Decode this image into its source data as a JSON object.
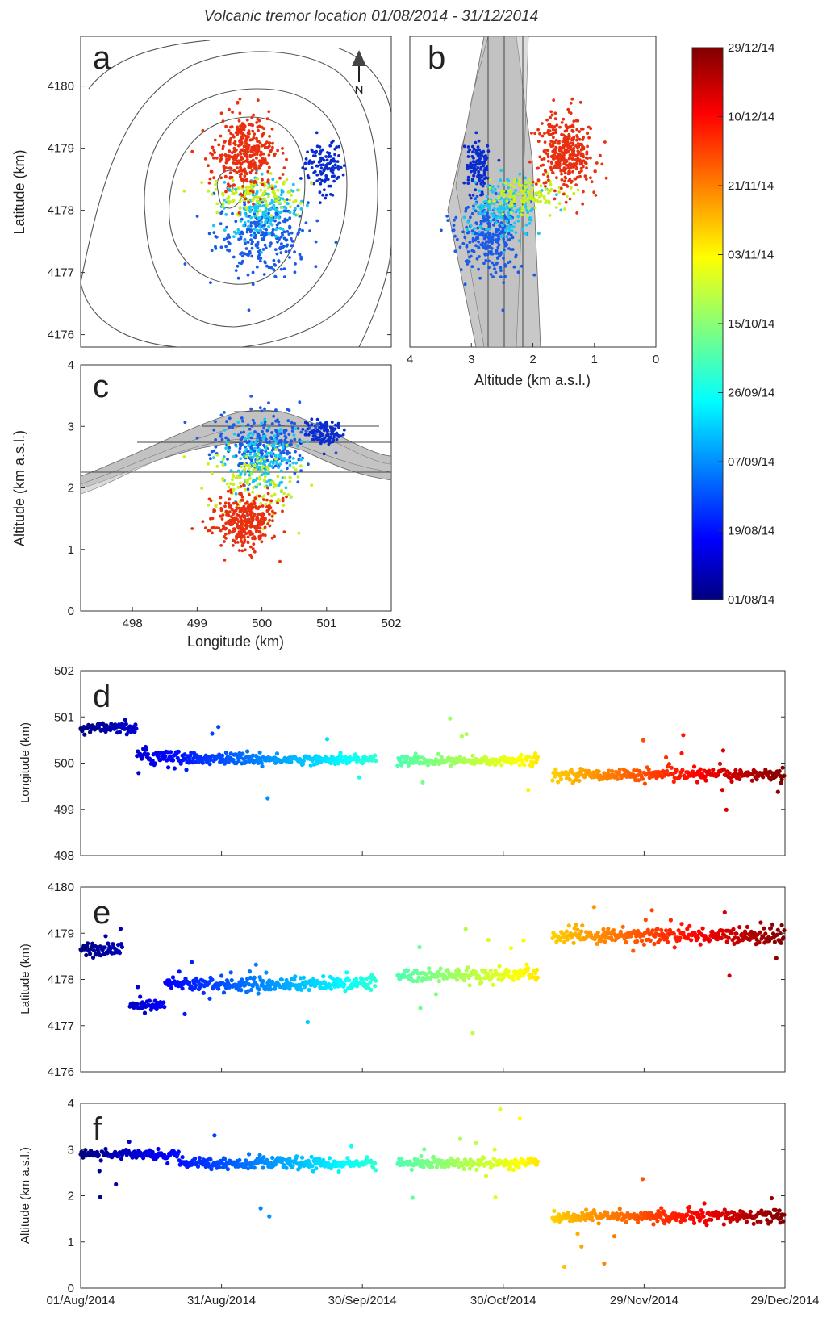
{
  "title": "Volcanic tremor location 01/08/2014 - 31/12/2014",
  "chart_data": [
    {
      "panel": "a",
      "type": "scatter",
      "xlabel": "",
      "ylabel": "Latitude (km)",
      "xlim": [
        497.2,
        502.0
      ],
      "ylim": [
        4175.8,
        4180.8
      ],
      "yticks": [
        "4176",
        "4177",
        "4178",
        "4179",
        "4180"
      ],
      "north_label": "N",
      "clusters": [
        {
          "period": "Aug 2014",
          "color": "#0a2ccf",
          "center": [
            500.95,
            4178.7
          ],
          "spread": [
            0.16,
            0.22
          ],
          "n": 120
        },
        {
          "period": "Aug-Sep 2014",
          "color": "#1a5ae8",
          "center": [
            500.0,
            4177.6
          ],
          "spread": [
            0.35,
            0.3
          ],
          "n": 260
        },
        {
          "period": "Sep-Oct 2014",
          "color": "#19c7f0",
          "center": [
            500.0,
            4178.05
          ],
          "spread": [
            0.3,
            0.25
          ],
          "n": 160
        },
        {
          "period": "Oct-Nov 2014",
          "color": "#c8f01f",
          "center": [
            499.85,
            4178.25
          ],
          "spread": [
            0.35,
            0.15
          ],
          "n": 120
        },
        {
          "period": "Nov-Dec 2014",
          "color": "#e83010",
          "center": [
            499.75,
            4178.9
          ],
          "spread": [
            0.22,
            0.3
          ],
          "n": 360
        }
      ]
    },
    {
      "panel": "b",
      "type": "scatter",
      "xlabel": "Altitude (km a.s.l.)",
      "ylabel": "",
      "xlim": [
        4,
        0
      ],
      "xticks": [
        "4",
        "3",
        "2",
        "1",
        "0"
      ],
      "ylim": [
        4175.8,
        4180.8
      ]
    },
    {
      "panel": "c",
      "type": "scatter",
      "xlabel": "Longitude (km)",
      "ylabel": "Altitude (km a.s.l.)",
      "xlim": [
        497.2,
        502.0
      ],
      "ylim": [
        0,
        4
      ],
      "xticks": [
        "498",
        "499",
        "500",
        "501",
        "502"
      ],
      "yticks": [
        "0",
        "1",
        "2",
        "3",
        "4"
      ]
    },
    {
      "panel": "colorbar",
      "type": "colorbar",
      "labels": [
        "29/12/14",
        "10/12/14",
        "21/11/14",
        "03/11/14",
        "15/10/14",
        "26/09/14",
        "07/09/14",
        "19/08/14",
        "01/08/14"
      ]
    },
    {
      "panel": "d",
      "type": "scatter",
      "ylabel": "Longitude (km)",
      "ylim": [
        498,
        502
      ],
      "yticks": [
        "498",
        "499",
        "500",
        "501",
        "502"
      ],
      "segments": [
        {
          "from": 0,
          "to": 0.08,
          "level": 500.75,
          "noise": 0.12
        },
        {
          "from": 0.08,
          "to": 0.14,
          "level": 500.15,
          "noise": 0.2
        },
        {
          "from": 0.14,
          "to": 0.26,
          "level": 500.1,
          "noise": 0.12
        },
        {
          "from": 0.26,
          "to": 0.42,
          "level": 500.08,
          "noise": 0.1
        },
        {
          "from": 0.45,
          "to": 0.65,
          "level": 500.05,
          "noise": 0.12
        },
        {
          "from": 0.67,
          "to": 1.0,
          "level": 499.75,
          "noise": 0.12
        }
      ]
    },
    {
      "panel": "e",
      "type": "scatter",
      "ylabel": "Latitude (km)",
      "ylim": [
        4176,
        4180
      ],
      "yticks": [
        "4176",
        "4177",
        "4178",
        "4179",
        "4180"
      ],
      "segments": [
        {
          "from": 0,
          "to": 0.06,
          "level": 4178.65,
          "noise": 0.15
        },
        {
          "from": 0.07,
          "to": 0.12,
          "level": 4177.45,
          "noise": 0.1
        },
        {
          "from": 0.12,
          "to": 0.42,
          "level": 4177.9,
          "noise": 0.15
        },
        {
          "from": 0.45,
          "to": 0.65,
          "level": 4178.1,
          "noise": 0.15
        },
        {
          "from": 0.67,
          "to": 1.0,
          "level": 4178.95,
          "noise": 0.18
        }
      ]
    },
    {
      "panel": "f",
      "type": "scatter",
      "ylabel": "Altitude (km a.s.l.)",
      "ylim": [
        0,
        4
      ],
      "yticks": [
        "0",
        "1",
        "2",
        "3",
        "4"
      ],
      "xticks": [
        "01/Aug/2014",
        "31/Aug/2014",
        "30/Sep/2014",
        "30/Oct/2014",
        "29/Nov/2014",
        "29/Dec/2014"
      ],
      "segments": [
        {
          "from": 0,
          "to": 0.14,
          "level": 2.9,
          "noise": 0.1
        },
        {
          "from": 0.14,
          "to": 0.42,
          "level": 2.7,
          "noise": 0.12
        },
        {
          "from": 0.45,
          "to": 0.65,
          "level": 2.7,
          "noise": 0.12
        },
        {
          "from": 0.67,
          "to": 0.85,
          "level": 1.55,
          "noise": 0.12
        },
        {
          "from": 0.85,
          "to": 1.0,
          "level": 1.55,
          "noise": 0.15
        }
      ]
    }
  ],
  "panel_labels": {
    "a": "a",
    "b": "b",
    "c": "c",
    "d": "d",
    "e": "e",
    "f": "f"
  }
}
